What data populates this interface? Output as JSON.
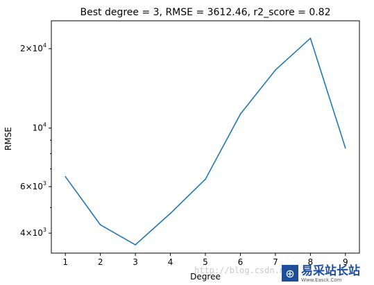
{
  "chart_data": {
    "type": "line",
    "title": "Best degree = 3, RMSE = 3612.46, r2_score = 0.82",
    "xlabel": "Degree",
    "ylabel": "RMSE",
    "yscale": "log",
    "x": [
      1,
      2,
      3,
      4,
      5,
      6,
      7,
      8,
      9
    ],
    "series": [
      {
        "values": [
          6550,
          4300,
          3612.46,
          4750,
          6400,
          11300,
          16600,
          21900,
          8400
        ],
        "color": "#1f77b4"
      }
    ],
    "xlim": [
      0.6,
      9.4
    ],
    "ylim": [
      3360,
      25500
    ],
    "x_ticks": [
      "1",
      "2",
      "3",
      "4",
      "5",
      "6",
      "7",
      "8",
      "9"
    ],
    "y_major_ticks": [
      {
        "value": 4000,
        "mantissa": "4",
        "label_mid": "×10",
        "exp": "3"
      },
      {
        "value": 6000,
        "mantissa": "6",
        "label_mid": "×10",
        "exp": "3"
      },
      {
        "value": 10000,
        "mantissa": "",
        "label_mid": "10",
        "exp": "4"
      },
      {
        "value": 20000,
        "mantissa": "2",
        "label_mid": "×10",
        "exp": "4"
      }
    ],
    "y_minor_ticks": [
      5000,
      7000,
      8000,
      9000
    ],
    "grid": false,
    "legend": "none"
  },
  "watermark": {
    "url_text": "http://blog.csdn.n",
    "logo_text": "易采站长站",
    "logo_sub": "Www.Easck.Com"
  }
}
